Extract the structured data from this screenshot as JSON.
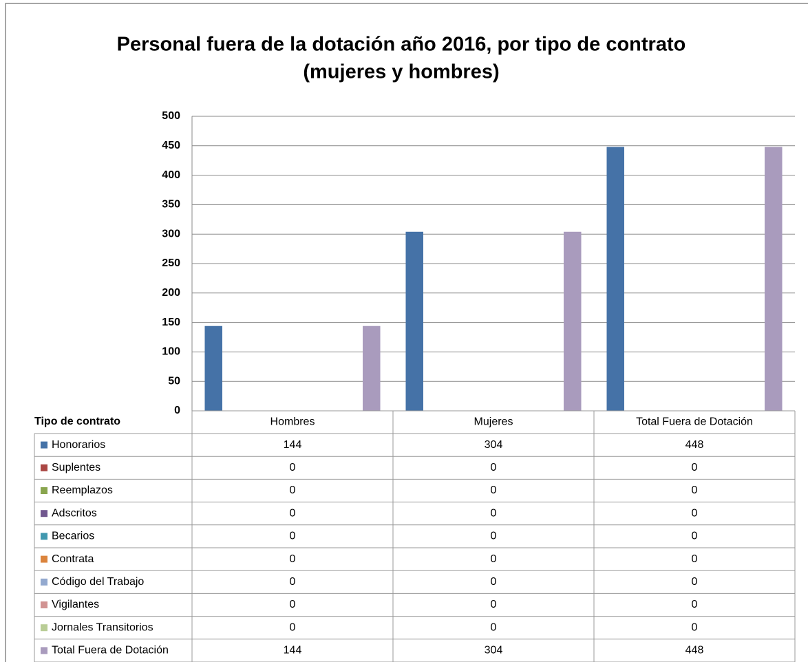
{
  "chart_data": {
    "type": "bar",
    "title": [
      "Personal fuera de la dotación año 2016, por tipo de contrato",
      "(mujeres y hombres)"
    ],
    "table_header": "Tipo de contrato",
    "categories": [
      "Hombres",
      "Mujeres",
      "Total Fuera de Dotación"
    ],
    "ylim": [
      0,
      500
    ],
    "yticks": [
      0,
      50,
      100,
      150,
      200,
      250,
      300,
      350,
      400,
      450,
      500
    ],
    "grid": true,
    "series": [
      {
        "name": "Honorarios",
        "color": "#4572a7",
        "values": [
          144,
          304,
          448
        ]
      },
      {
        "name": "Suplentes",
        "color": "#aa4643",
        "values": [
          0,
          0,
          0
        ]
      },
      {
        "name": "Reemplazos",
        "color": "#89a54e",
        "values": [
          0,
          0,
          0
        ]
      },
      {
        "name": "Adscritos",
        "color": "#71588f",
        "values": [
          0,
          0,
          0
        ]
      },
      {
        "name": "Becarios",
        "color": "#4198af",
        "values": [
          0,
          0,
          0
        ]
      },
      {
        "name": "Contrata",
        "color": "#db843d",
        "values": [
          0,
          0,
          0
        ]
      },
      {
        "name": "Código del Trabajo",
        "color": "#93a9cf",
        "values": [
          0,
          0,
          0
        ]
      },
      {
        "name": "Vigilantes",
        "color": "#d19392",
        "values": [
          0,
          0,
          0
        ]
      },
      {
        "name": "Jornales Transitorios",
        "color": "#b9cd96",
        "values": [
          0,
          0,
          0
        ]
      },
      {
        "name": "Total Fuera de Dotación",
        "color": "#a99bbd",
        "values": [
          144,
          304,
          448
        ]
      }
    ]
  }
}
